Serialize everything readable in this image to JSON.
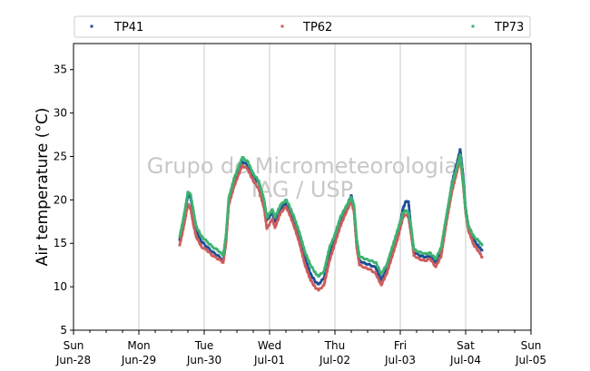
{
  "chart_data": {
    "type": "scatter",
    "title": "",
    "xlabel": "",
    "ylabel": "Air temperature (°C)",
    "ylim": [
      5,
      38
    ],
    "yticks": [
      5,
      10,
      15,
      20,
      25,
      30,
      35
    ],
    "x_axis_type": "date",
    "xlim": [
      "2020-06-28T00:00",
      "2020-07-05T00:00"
    ],
    "xticks": [
      {
        "date": "2020-06-28",
        "line1": "Sun",
        "line2": "Jun-28"
      },
      {
        "date": "2020-06-29",
        "line1": "Mon",
        "line2": "Jun-29"
      },
      {
        "date": "2020-06-30",
        "line1": "Tue",
        "line2": "Jun-30"
      },
      {
        "date": "2020-07-01",
        "line1": "Wed",
        "line2": "Jul-01"
      },
      {
        "date": "2020-07-02",
        "line1": "Thu",
        "line2": "Jul-02"
      },
      {
        "date": "2020-07-03",
        "line1": "Fri",
        "line2": "Jul-03"
      },
      {
        "date": "2020-07-04",
        "line1": "Sat",
        "line2": "Jul-04"
      },
      {
        "date": "2020-07-05",
        "line1": "Sun",
        "line2": "Jul-05"
      }
    ],
    "grid": "vertical",
    "legend_position": "top",
    "watermark": [
      "Grupo de Micrometeorologia",
      "IAG / USP"
    ],
    "series": [
      {
        "name": "TP41",
        "color": "#1f4e96",
        "points": [
          [
            "2020-06-29T15:00",
            15.4
          ],
          [
            "2020-06-29T16:00",
            17.0
          ],
          [
            "2020-06-29T17:00",
            18.6
          ],
          [
            "2020-06-29T18:00",
            20.6
          ],
          [
            "2020-06-29T19:00",
            20.3
          ],
          [
            "2020-06-29T20:00",
            18.3
          ],
          [
            "2020-06-29T21:00",
            16.5
          ],
          [
            "2020-06-29T23:00",
            15.2
          ],
          [
            "2020-06-30T01:00",
            14.6
          ],
          [
            "2020-06-30T03:00",
            14.0
          ],
          [
            "2020-06-30T05:00",
            13.6
          ],
          [
            "2020-06-30T07:00",
            13.0
          ],
          [
            "2020-06-30T08:00",
            15.5
          ],
          [
            "2020-06-30T09:00",
            19.8
          ],
          [
            "2020-06-30T11:00",
            22.0
          ],
          [
            "2020-06-30T14:00",
            24.4
          ],
          [
            "2020-06-30T16:00",
            24.0
          ],
          [
            "2020-06-30T18:00",
            22.7
          ],
          [
            "2020-06-30T20:00",
            22.0
          ],
          [
            "2020-06-30T22:00",
            19.8
          ],
          [
            "2020-06-30T23:00",
            17.7
          ],
          [
            "2020-07-01T01:00",
            18.5
          ],
          [
            "2020-07-01T02:00",
            17.5
          ],
          [
            "2020-07-01T04:00",
            19.0
          ],
          [
            "2020-07-01T06:00",
            19.6
          ],
          [
            "2020-07-01T07:00",
            19.0
          ],
          [
            "2020-07-01T09:00",
            17.5
          ],
          [
            "2020-07-01T11:00",
            15.5
          ],
          [
            "2020-07-01T13:00",
            13.3
          ],
          [
            "2020-07-01T15:00",
            11.5
          ],
          [
            "2020-07-01T17:00",
            10.5
          ],
          [
            "2020-07-01T18:00",
            10.3
          ],
          [
            "2020-07-01T20:00",
            11.0
          ],
          [
            "2020-07-01T22:00",
            13.8
          ],
          [
            "2020-07-02T00:00",
            15.5
          ],
          [
            "2020-07-02T02:00",
            17.7
          ],
          [
            "2020-07-02T04:00",
            19.0
          ],
          [
            "2020-07-02T06:00",
            20.5
          ],
          [
            "2020-07-02T07:00",
            19.2
          ],
          [
            "2020-07-02T08:00",
            15.0
          ],
          [
            "2020-07-02T09:00",
            13.0
          ],
          [
            "2020-07-02T11:00",
            12.7
          ],
          [
            "2020-07-02T13:00",
            12.5
          ],
          [
            "2020-07-02T15:00",
            12.2
          ],
          [
            "2020-07-02T17:00",
            10.8
          ],
          [
            "2020-07-02T19:00",
            12.0
          ],
          [
            "2020-07-02T21:00",
            14.0
          ],
          [
            "2020-07-02T23:00",
            16.0
          ],
          [
            "2020-07-03T01:00",
            19.0
          ],
          [
            "2020-07-03T02:00",
            19.8
          ],
          [
            "2020-07-03T03:00",
            19.8
          ],
          [
            "2020-07-03T04:00",
            16.5
          ],
          [
            "2020-07-03T05:00",
            14.0
          ],
          [
            "2020-07-03T07:00",
            13.6
          ],
          [
            "2020-07-03T09:00",
            13.4
          ],
          [
            "2020-07-03T11:00",
            13.5
          ],
          [
            "2020-07-03T13:00",
            12.8
          ],
          [
            "2020-07-03T15:00",
            14.0
          ],
          [
            "2020-07-03T17:00",
            18.0
          ],
          [
            "2020-07-03T19:00",
            22.0
          ],
          [
            "2020-07-03T21:00",
            24.5
          ],
          [
            "2020-07-03T22:00",
            25.8
          ],
          [
            "2020-07-03T23:00",
            23.0
          ],
          [
            "2020-07-04T00:00",
            19.0
          ],
          [
            "2020-07-04T01:00",
            17.0
          ],
          [
            "2020-07-04T03:00",
            15.4
          ],
          [
            "2020-07-04T05:00",
            14.5
          ],
          [
            "2020-07-04T06:00",
            14.2
          ]
        ]
      },
      {
        "name": "TP62",
        "color": "#cd5c5c",
        "points": [
          [
            "2020-06-29T15:00",
            14.8
          ],
          [
            "2020-06-29T16:00",
            16.2
          ],
          [
            "2020-06-29T17:00",
            17.8
          ],
          [
            "2020-06-29T18:00",
            19.5
          ],
          [
            "2020-06-29T19:00",
            19.0
          ],
          [
            "2020-06-29T20:00",
            17.2
          ],
          [
            "2020-06-29T21:00",
            15.8
          ],
          [
            "2020-06-29T23:00",
            14.6
          ],
          [
            "2020-06-30T01:00",
            14.2
          ],
          [
            "2020-06-30T03:00",
            13.6
          ],
          [
            "2020-06-30T05:00",
            13.2
          ],
          [
            "2020-06-30T07:00",
            12.8
          ],
          [
            "2020-06-30T08:00",
            15.0
          ],
          [
            "2020-06-30T09:00",
            19.4
          ],
          [
            "2020-06-30T11:00",
            21.6
          ],
          [
            "2020-06-30T14:00",
            24.0
          ],
          [
            "2020-06-30T16:00",
            23.5
          ],
          [
            "2020-06-30T18:00",
            22.2
          ],
          [
            "2020-06-30T20:00",
            21.3
          ],
          [
            "2020-06-30T22:00",
            19.0
          ],
          [
            "2020-06-30T23:00",
            16.7
          ],
          [
            "2020-07-01T01:00",
            17.8
          ],
          [
            "2020-07-01T02:00",
            16.8
          ],
          [
            "2020-07-01T04:00",
            18.5
          ],
          [
            "2020-07-01T06:00",
            19.2
          ],
          [
            "2020-07-01T07:00",
            18.6
          ],
          [
            "2020-07-01T09:00",
            17.0
          ],
          [
            "2020-07-01T11:00",
            15.0
          ],
          [
            "2020-07-01T13:00",
            12.5
          ],
          [
            "2020-07-01T15:00",
            10.8
          ],
          [
            "2020-07-01T17:00",
            9.8
          ],
          [
            "2020-07-01T18:00",
            9.6
          ],
          [
            "2020-07-01T20:00",
            10.2
          ],
          [
            "2020-07-01T22:00",
            13.0
          ],
          [
            "2020-07-02T00:00",
            15.0
          ],
          [
            "2020-07-02T02:00",
            17.0
          ],
          [
            "2020-07-02T04:00",
            18.5
          ],
          [
            "2020-07-02T06:00",
            19.8
          ],
          [
            "2020-07-02T07:00",
            18.6
          ],
          [
            "2020-07-02T08:00",
            14.5
          ],
          [
            "2020-07-02T09:00",
            12.5
          ],
          [
            "2020-07-02T11:00",
            12.2
          ],
          [
            "2020-07-02T13:00",
            12.0
          ],
          [
            "2020-07-02T15:00",
            11.5
          ],
          [
            "2020-07-02T17:00",
            10.2
          ],
          [
            "2020-07-02T19:00",
            11.5
          ],
          [
            "2020-07-02T21:00",
            13.5
          ],
          [
            "2020-07-02T23:00",
            15.5
          ],
          [
            "2020-07-03T01:00",
            18.0
          ],
          [
            "2020-07-03T02:00",
            18.3
          ],
          [
            "2020-07-03T03:00",
            18.0
          ],
          [
            "2020-07-03T04:00",
            16.0
          ],
          [
            "2020-07-03T05:00",
            13.6
          ],
          [
            "2020-07-03T07:00",
            13.2
          ],
          [
            "2020-07-03T09:00",
            13.0
          ],
          [
            "2020-07-03T11:00",
            13.2
          ],
          [
            "2020-07-03T13:00",
            12.3
          ],
          [
            "2020-07-03T15:00",
            13.5
          ],
          [
            "2020-07-03T17:00",
            17.5
          ],
          [
            "2020-07-03T19:00",
            21.0
          ],
          [
            "2020-07-03T21:00",
            23.5
          ],
          [
            "2020-07-03T22:00",
            24.8
          ],
          [
            "2020-07-03T23:00",
            22.0
          ],
          [
            "2020-07-04T00:00",
            18.5
          ],
          [
            "2020-07-04T01:00",
            16.5
          ],
          [
            "2020-07-04T03:00",
            14.8
          ],
          [
            "2020-07-04T05:00",
            14.0
          ],
          [
            "2020-07-04T06:00",
            13.4
          ]
        ]
      },
      {
        "name": "TP73",
        "color": "#3cb371",
        "points": [
          [
            "2020-06-29T15:00",
            15.8
          ],
          [
            "2020-06-29T16:00",
            17.3
          ],
          [
            "2020-06-29T17:00",
            19.0
          ],
          [
            "2020-06-29T18:00",
            20.9
          ],
          [
            "2020-06-29T19:00",
            20.6
          ],
          [
            "2020-06-29T20:00",
            18.8
          ],
          [
            "2020-06-29T21:00",
            17.0
          ],
          [
            "2020-06-29T23:00",
            15.8
          ],
          [
            "2020-06-30T01:00",
            15.2
          ],
          [
            "2020-06-30T03:00",
            14.6
          ],
          [
            "2020-06-30T05:00",
            14.2
          ],
          [
            "2020-06-30T07:00",
            13.6
          ],
          [
            "2020-06-30T08:00",
            16.0
          ],
          [
            "2020-06-30T09:00",
            20.2
          ],
          [
            "2020-06-30T11:00",
            22.5
          ],
          [
            "2020-06-30T14:00",
            24.9
          ],
          [
            "2020-06-30T16:00",
            24.4
          ],
          [
            "2020-06-30T18:00",
            23.0
          ],
          [
            "2020-06-30T20:00",
            22.2
          ],
          [
            "2020-06-30T22:00",
            20.0
          ],
          [
            "2020-06-30T23:00",
            18.0
          ],
          [
            "2020-07-01T01:00",
            18.9
          ],
          [
            "2020-07-01T02:00",
            18.0
          ],
          [
            "2020-07-01T04:00",
            19.4
          ],
          [
            "2020-07-01T06:00",
            20.0
          ],
          [
            "2020-07-01T07:00",
            19.5
          ],
          [
            "2020-07-01T09:00",
            18.0
          ],
          [
            "2020-07-01T11:00",
            16.2
          ],
          [
            "2020-07-01T13:00",
            14.0
          ],
          [
            "2020-07-01T15:00",
            12.5
          ],
          [
            "2020-07-01T17:00",
            11.5
          ],
          [
            "2020-07-01T18:00",
            11.2
          ],
          [
            "2020-07-01T20:00",
            11.8
          ],
          [
            "2020-07-01T22:00",
            14.5
          ],
          [
            "2020-07-02T00:00",
            16.0
          ],
          [
            "2020-07-02T02:00",
            18.0
          ],
          [
            "2020-07-02T04:00",
            19.2
          ],
          [
            "2020-07-02T06:00",
            20.3
          ],
          [
            "2020-07-02T07:00",
            19.4
          ],
          [
            "2020-07-02T08:00",
            15.5
          ],
          [
            "2020-07-02T09:00",
            13.5
          ],
          [
            "2020-07-02T11:00",
            13.2
          ],
          [
            "2020-07-02T13:00",
            13.0
          ],
          [
            "2020-07-02T15:00",
            12.8
          ],
          [
            "2020-07-02T17:00",
            11.5
          ],
          [
            "2020-07-02T19:00",
            12.5
          ],
          [
            "2020-07-02T21:00",
            14.5
          ],
          [
            "2020-07-02T23:00",
            16.5
          ],
          [
            "2020-07-03T01:00",
            18.5
          ],
          [
            "2020-07-03T02:00",
            18.8
          ],
          [
            "2020-07-03T03:00",
            18.5
          ],
          [
            "2020-07-03T04:00",
            16.8
          ],
          [
            "2020-07-03T05:00",
            14.3
          ],
          [
            "2020-07-03T07:00",
            14.0
          ],
          [
            "2020-07-03T09:00",
            13.8
          ],
          [
            "2020-07-03T11:00",
            13.9
          ],
          [
            "2020-07-03T13:00",
            13.2
          ],
          [
            "2020-07-03T15:00",
            14.5
          ],
          [
            "2020-07-03T17:00",
            18.3
          ],
          [
            "2020-07-03T19:00",
            21.8
          ],
          [
            "2020-07-03T21:00",
            24.0
          ],
          [
            "2020-07-03T22:00",
            25.2
          ],
          [
            "2020-07-03T23:00",
            22.5
          ],
          [
            "2020-07-04T00:00",
            18.8
          ],
          [
            "2020-07-04T01:00",
            17.0
          ],
          [
            "2020-07-04T03:00",
            15.8
          ],
          [
            "2020-07-04T05:00",
            15.2
          ],
          [
            "2020-07-04T06:00",
            14.8
          ]
        ]
      }
    ]
  }
}
